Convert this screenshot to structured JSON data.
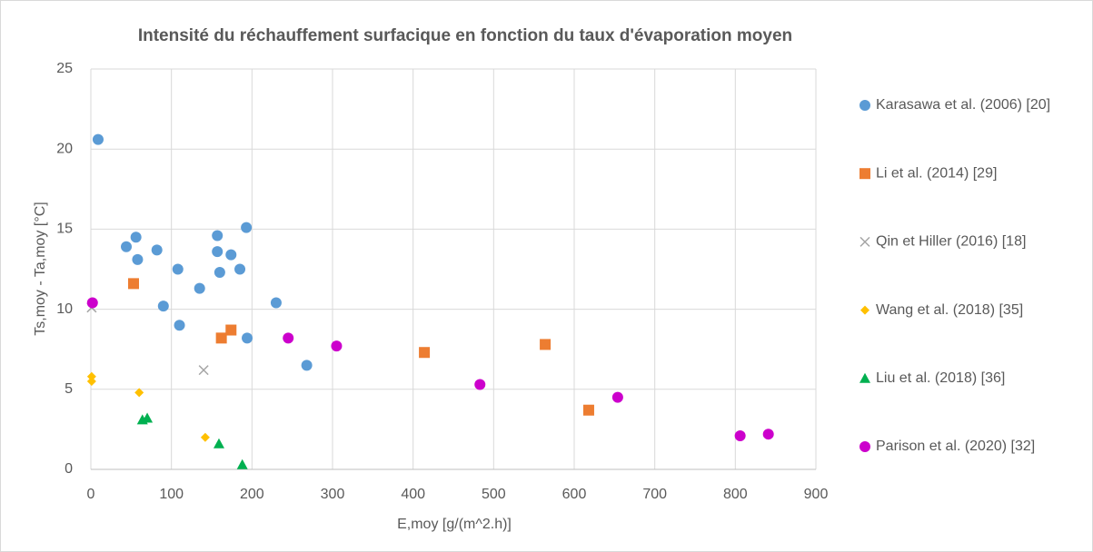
{
  "chart_data": {
    "type": "scatter",
    "title": "Intensité du réchauffement surfacique en fonction du taux d'évaporation moyen",
    "xlabel": "E,moy [g/(m^2.h)]",
    "ylabel": "Ts,moy - Ta,moy [°C]",
    "xlim": [
      0,
      900
    ],
    "xticks": [
      0,
      100,
      200,
      300,
      400,
      500,
      600,
      700,
      800,
      900
    ],
    "ylim": [
      0,
      25
    ],
    "yticks": [
      0,
      5,
      10,
      15,
      20,
      25
    ],
    "grid": true,
    "legend": "right",
    "series": [
      {
        "name": "Karasawa et al. (2006) [20]",
        "color": "#5b9bd5",
        "marker": "circle",
        "x": [
          9,
          44,
          56,
          58,
          82,
          108,
          90,
          110,
          135,
          157,
          157,
          160,
          174,
          185,
          193,
          194,
          230,
          268
        ],
        "values": [
          20.6,
          13.9,
          14.5,
          13.1,
          13.7,
          12.5,
          10.2,
          9.0,
          11.3,
          14.6,
          13.6,
          12.3,
          13.4,
          12.5,
          15.1,
          8.2,
          10.4,
          6.5
        ]
      },
      {
        "name": "Li et al. (2014) [29]",
        "color": "#ed7d31",
        "marker": "square",
        "x": [
          53,
          162,
          174,
          414,
          564,
          618
        ],
        "values": [
          11.6,
          8.2,
          8.7,
          7.3,
          7.8,
          3.7
        ]
      },
      {
        "name": "Qin et Hiller (2016) [18]",
        "color": "#a5a5a5",
        "marker": "x",
        "x": [
          1,
          140
        ],
        "values": [
          10.1,
          6.2
        ]
      },
      {
        "name": "Wang et al. (2018) [35]",
        "color": "#ffc000",
        "marker": "diamond",
        "x": [
          1,
          1,
          60,
          142
        ],
        "values": [
          5.8,
          5.5,
          4.8,
          2.0
        ]
      },
      {
        "name": "Liu et al. (2018) [36]",
        "color": "#00b050",
        "marker": "triangle",
        "x": [
          64,
          70,
          159,
          188
        ],
        "values": [
          3.1,
          3.2,
          1.6,
          0.3
        ]
      },
      {
        "name": "Parison et al. (2020) [32]",
        "color": "#cc00cc",
        "marker": "circle",
        "x": [
          2,
          245,
          305,
          483,
          654,
          806,
          841
        ],
        "values": [
          10.4,
          8.2,
          7.7,
          5.3,
          4.5,
          2.1,
          2.2
        ]
      }
    ]
  }
}
